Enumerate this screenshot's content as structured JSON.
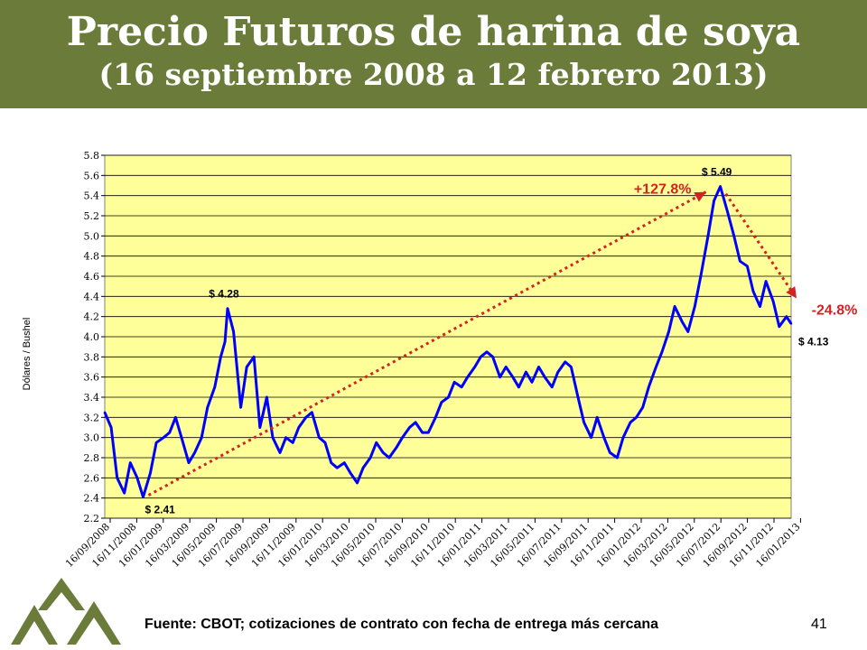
{
  "header": {
    "title": "Precio Futuros de harina de soya",
    "subtitle": "(16 septiembre 2008 a 12 febrero 2013)"
  },
  "footer": {
    "source": "Fuente: CBOT; cotizaciones de contrato con fecha de entrega más cercana",
    "page_number": "41"
  },
  "colors": {
    "header_bg": "#6b7c3a",
    "plot_bg": "#ffff99",
    "series": "#0000ff",
    "annotation": "#d42222"
  },
  "chart_data": {
    "type": "line",
    "title": "",
    "xlabel": "",
    "ylabel": "Dólares / Bushel",
    "ylim": [
      2.2,
      5.8
    ],
    "yticks": [
      "2.2",
      "2.4",
      "2.6",
      "2.8",
      "3.0",
      "3.2",
      "3.4",
      "3.6",
      "3.8",
      "4.0",
      "4.2",
      "4.4",
      "4.6",
      "4.8",
      "5.0",
      "5.2",
      "5.4",
      "5.6",
      "5.8"
    ],
    "xticks": [
      "16/09/2008",
      "16/11/2008",
      "16/01/2009",
      "16/03/2009",
      "16/05/2009",
      "16/07/2009",
      "16/09/2009",
      "16/11/2009",
      "16/01/2010",
      "16/03/2010",
      "16/05/2010",
      "16/07/2010",
      "16/09/2010",
      "16/11/2010",
      "16/01/2011",
      "16/03/2011",
      "16/05/2011",
      "16/07/2011",
      "16/09/2011",
      "16/11/2011",
      "16/01/2012",
      "16/03/2012",
      "16/05/2012",
      "16/07/2012",
      "16/09/2012",
      "16/11/2012",
      "16/01/2013"
    ],
    "grid": true,
    "legend": "none",
    "series": [
      {
        "x": [
          "2008-09-16",
          "2008-10-01",
          "2008-10-15",
          "2008-11-01",
          "2008-11-15",
          "2008-12-01",
          "2008-12-15",
          "2009-01-01",
          "2009-01-15",
          "2009-02-01",
          "2009-02-15",
          "2009-03-01",
          "2009-03-15",
          "2009-04-01",
          "2009-04-15",
          "2009-05-01",
          "2009-05-15",
          "2009-06-01",
          "2009-06-15",
          "2009-06-25",
          "2009-07-01",
          "2009-07-15",
          "2009-08-01",
          "2009-08-15",
          "2009-09-01",
          "2009-09-15",
          "2009-10-01",
          "2009-10-15",
          "2009-11-01",
          "2009-11-15",
          "2009-12-01",
          "2009-12-15",
          "2010-01-01",
          "2010-01-15",
          "2010-02-01",
          "2010-02-15",
          "2010-03-01",
          "2010-03-15",
          "2010-04-01",
          "2010-04-15",
          "2010-05-01",
          "2010-05-15",
          "2010-06-01",
          "2010-06-15",
          "2010-07-01",
          "2010-07-15",
          "2010-08-01",
          "2010-08-15",
          "2010-09-01",
          "2010-09-15",
          "2010-10-01",
          "2010-10-15",
          "2010-11-01",
          "2010-11-15",
          "2010-12-01",
          "2010-12-15",
          "2011-01-01",
          "2011-01-15",
          "2011-02-01",
          "2011-02-15",
          "2011-03-01",
          "2011-03-15",
          "2011-04-01",
          "2011-04-15",
          "2011-05-01",
          "2011-05-15",
          "2011-06-01",
          "2011-06-15",
          "2011-07-01",
          "2011-07-15",
          "2011-08-01",
          "2011-08-15",
          "2011-09-01",
          "2011-09-15",
          "2011-10-01",
          "2011-10-15",
          "2011-11-01",
          "2011-11-15",
          "2011-12-01",
          "2011-12-15",
          "2012-01-01",
          "2012-01-15",
          "2012-02-01",
          "2012-02-15",
          "2012-03-01",
          "2012-03-15",
          "2012-04-01",
          "2012-04-15",
          "2012-05-01",
          "2012-05-15",
          "2012-06-01",
          "2012-06-15",
          "2012-07-01",
          "2012-07-15",
          "2012-08-01",
          "2012-08-15",
          "2012-08-30",
          "2012-09-15",
          "2012-10-01",
          "2012-10-15",
          "2012-11-01",
          "2012-11-15",
          "2012-12-01",
          "2012-12-15",
          "2013-01-01",
          "2013-01-15",
          "2013-02-01",
          "2013-02-12"
        ],
        "y": [
          3.25,
          3.1,
          2.6,
          2.45,
          2.75,
          2.6,
          2.41,
          2.65,
          2.95,
          3.0,
          3.05,
          3.2,
          3.0,
          2.75,
          2.85,
          3.0,
          3.3,
          3.5,
          3.8,
          3.95,
          4.28,
          4.05,
          3.3,
          3.7,
          3.8,
          3.1,
          3.4,
          3.0,
          2.85,
          3.0,
          2.95,
          3.1,
          3.2,
          3.25,
          3.0,
          2.95,
          2.75,
          2.7,
          2.75,
          2.65,
          2.55,
          2.7,
          2.8,
          2.95,
          2.85,
          2.8,
          2.9,
          3.0,
          3.1,
          3.15,
          3.05,
          3.05,
          3.2,
          3.35,
          3.4,
          3.55,
          3.5,
          3.6,
          3.7,
          3.8,
          3.85,
          3.8,
          3.6,
          3.7,
          3.6,
          3.5,
          3.65,
          3.55,
          3.7,
          3.6,
          3.5,
          3.65,
          3.75,
          3.7,
          3.4,
          3.15,
          3.0,
          3.2,
          3.0,
          2.85,
          2.8,
          3.0,
          3.15,
          3.2,
          3.3,
          3.5,
          3.7,
          3.85,
          4.05,
          4.3,
          4.15,
          4.05,
          4.3,
          4.6,
          5.0,
          5.35,
          5.49,
          5.25,
          5.0,
          4.75,
          4.7,
          4.45,
          4.3,
          4.55,
          4.35,
          4.1,
          4.2,
          4.13
        ]
      }
    ],
    "point_labels": [
      {
        "date": "2008-12-15",
        "value": 2.41,
        "text": "$ 2.41"
      },
      {
        "date": "2009-07-01",
        "value": 4.28,
        "text": "$ 4.28"
      },
      {
        "date": "2012-08-30",
        "value": 5.49,
        "text": "$ 5.49"
      },
      {
        "date": "2013-02-12",
        "value": 4.13,
        "text": "$ 4.13"
      }
    ],
    "annotations": [
      {
        "text": "+127.8%",
        "from_date": "2008-12-15",
        "from_value": 2.41,
        "to_date": "2012-08-30",
        "to_value": 5.49
      },
      {
        "text": "-24.8%",
        "from_date": "2012-08-30",
        "from_value": 5.49,
        "to_date": "2013-02-12",
        "to_value": 4.13
      }
    ]
  }
}
